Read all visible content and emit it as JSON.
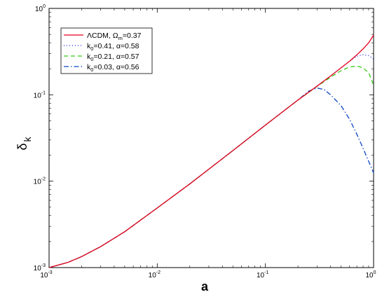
{
  "chart_data": {
    "type": "line",
    "xscale": "log",
    "yscale": "log",
    "xlim": [
      0.001,
      1
    ],
    "ylim": [
      0.001,
      1
    ],
    "xlabel": "a",
    "ylabel": {
      "main": "δ",
      "sub": "k"
    },
    "xticks": [
      {
        "value": 0.001,
        "base": "10",
        "exp": "-3"
      },
      {
        "value": 0.01,
        "base": "10",
        "exp": "-2"
      },
      {
        "value": 0.1,
        "base": "10",
        "exp": "-1"
      },
      {
        "value": 1,
        "base": "10",
        "exp": "0"
      }
    ],
    "yticks": [
      {
        "value": 0.001,
        "base": "10",
        "exp": "-3"
      },
      {
        "value": 0.01,
        "base": "10",
        "exp": "-2"
      },
      {
        "value": 0.1,
        "base": "10",
        "exp": "-1"
      },
      {
        "value": 1,
        "base": "10",
        "exp": "0"
      }
    ],
    "grid": false,
    "legend_position": "top-left",
    "series": [
      {
        "label_parts": [
          {
            "text": "ΛCDM, Ω",
            "sub": false
          },
          {
            "text": "m",
            "sub": true
          },
          {
            "text": "=0.37",
            "sub": false
          }
        ],
        "color": "#e8001c",
        "style": "solid",
        "x": [
          0.001,
          0.0015,
          0.002,
          0.003,
          0.005,
          0.01,
          0.02,
          0.05,
          0.1,
          0.15,
          0.2,
          0.3,
          0.4,
          0.5,
          0.6,
          0.7,
          0.8,
          0.9,
          1.0
        ],
        "y": [
          0.001,
          0.00115,
          0.00134,
          0.00175,
          0.0026,
          0.0049,
          0.0093,
          0.0226,
          0.0446,
          0.066,
          0.087,
          0.126,
          0.165,
          0.205,
          0.245,
          0.29,
          0.34,
          0.4,
          0.49
        ]
      },
      {
        "label_parts": [
          {
            "text": "k",
            "sub": false
          },
          {
            "text": "0",
            "sub": true
          },
          {
            "text": "=0.41, α=0.58",
            "sub": false
          }
        ],
        "color": "#1a2ee6",
        "style": "dotted",
        "x": [
          0.001,
          0.0015,
          0.002,
          0.003,
          0.005,
          0.01,
          0.02,
          0.05,
          0.1,
          0.15,
          0.2,
          0.3,
          0.4,
          0.5,
          0.6,
          0.7,
          0.8,
          0.9,
          1.0
        ],
        "y": [
          0.001,
          0.00115,
          0.00134,
          0.00175,
          0.0026,
          0.0049,
          0.0093,
          0.0226,
          0.0446,
          0.066,
          0.087,
          0.126,
          0.165,
          0.205,
          0.245,
          0.28,
          0.29,
          0.285,
          0.26
        ]
      },
      {
        "label_parts": [
          {
            "text": "k",
            "sub": false
          },
          {
            "text": "0",
            "sub": true
          },
          {
            "text": "=0.21, α=0.57",
            "sub": false
          }
        ],
        "color": "#33cc14",
        "style": "dashed",
        "x": [
          0.001,
          0.0015,
          0.002,
          0.003,
          0.005,
          0.01,
          0.02,
          0.05,
          0.1,
          0.15,
          0.2,
          0.3,
          0.4,
          0.5,
          0.6,
          0.7,
          0.8,
          0.9,
          1.0
        ],
        "y": [
          0.001,
          0.00115,
          0.00134,
          0.00175,
          0.0026,
          0.0049,
          0.0093,
          0.0226,
          0.0446,
          0.066,
          0.087,
          0.125,
          0.16,
          0.19,
          0.21,
          0.215,
          0.205,
          0.18,
          0.13
        ]
      },
      {
        "label_parts": [
          {
            "text": "k",
            "sub": false
          },
          {
            "text": "0",
            "sub": true
          },
          {
            "text": "=0.03, α=0.56",
            "sub": false
          }
        ],
        "color": "#0a44c8",
        "style": "dashdot",
        "x": [
          0.001,
          0.0015,
          0.002,
          0.003,
          0.005,
          0.01,
          0.02,
          0.05,
          0.1,
          0.15,
          0.2,
          0.25,
          0.3,
          0.35,
          0.4,
          0.5,
          0.6,
          0.7,
          0.8,
          0.9,
          1.0
        ],
        "y": [
          0.001,
          0.00115,
          0.00134,
          0.00175,
          0.0026,
          0.0049,
          0.0093,
          0.0226,
          0.0446,
          0.066,
          0.087,
          0.11,
          0.12,
          0.115,
          0.1,
          0.075,
          0.052,
          0.035,
          0.024,
          0.017,
          0.0125
        ]
      }
    ]
  }
}
